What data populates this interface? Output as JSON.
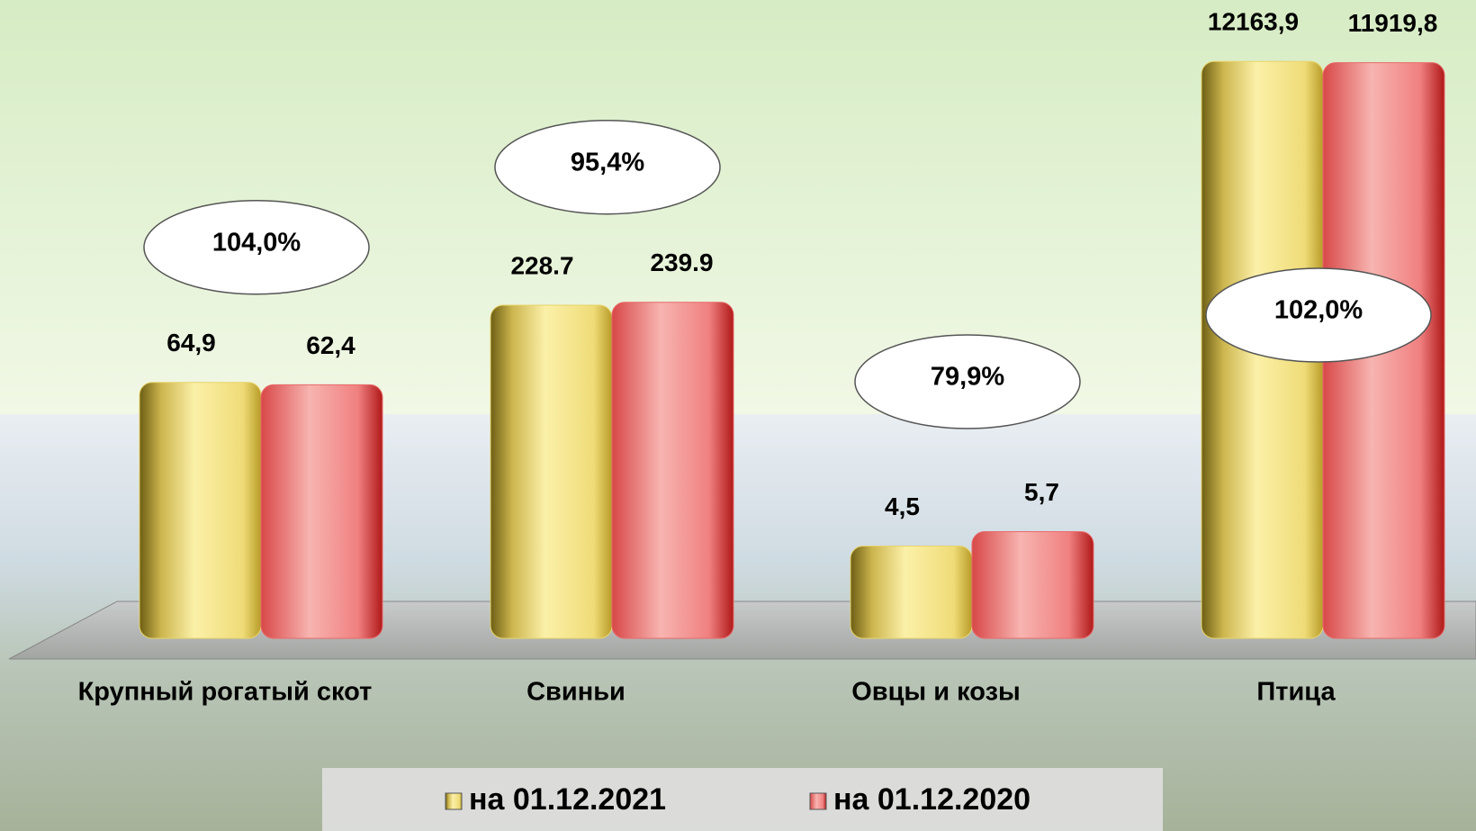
{
  "chart_data": {
    "type": "bar",
    "categories": [
      "Крупный рогатый скот",
      "Свиньи",
      "Овцы и козы",
      "Птица"
    ],
    "series": [
      {
        "name": "на 01.12.2021",
        "color": "#e8d46a",
        "values": [
          64.9,
          228.7,
          4.5,
          12163.9
        ],
        "value_labels": [
          "64,9",
          "228.7",
          "4,5",
          "12163,9"
        ]
      },
      {
        "name": "на 01.12.2020",
        "color": "#e86a6a",
        "values": [
          62.4,
          239.9,
          5.7,
          11919.8
        ],
        "value_labels": [
          "62,4",
          "239.9",
          "5,7",
          "11919,8"
        ]
      }
    ],
    "ratio_labels": [
      "104,0%",
      "95,4%",
      "79,9%",
      "102,0%"
    ],
    "log_scale": true,
    "ylim": [
      1,
      15000
    ],
    "legend": "bottom"
  }
}
